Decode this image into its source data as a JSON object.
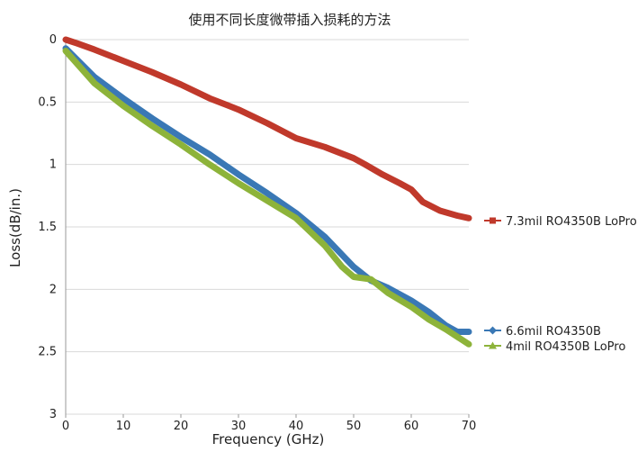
{
  "chart_data": {
    "type": "line",
    "title": "使用不同长度微带插入损耗的方法",
    "xlabel": "Frequency (GHz)",
    "ylabel": "Loss(dB/in.)",
    "xlim": [
      0,
      70
    ],
    "ylim": [
      0,
      3
    ],
    "y_inverted": true,
    "grid": "horizontal",
    "legend": "right, at line ends",
    "x_ticks": [
      "0",
      "10",
      "20",
      "30",
      "40",
      "50",
      "60",
      "70"
    ],
    "y_ticks": [
      "0",
      "0.5",
      "1",
      "1.5",
      "2",
      "2.5",
      "3"
    ],
    "series": [
      {
        "name": "7.3mil RO4350B LoPro",
        "color": "#c0392b",
        "marker": "square",
        "x": [
          0,
          2,
          5,
          10,
          15,
          20,
          25,
          30,
          35,
          40,
          45,
          50,
          52,
          55,
          58,
          60,
          62,
          65,
          68,
          70
        ],
        "y": [
          0,
          0.03,
          0.08,
          0.17,
          0.26,
          0.36,
          0.47,
          0.56,
          0.67,
          0.79,
          0.86,
          0.95,
          1.0,
          1.08,
          1.15,
          1.2,
          1.3,
          1.37,
          1.41,
          1.43
        ]
      },
      {
        "name": "6.6mil RO4350B",
        "color": "#3a78b5",
        "marker": "diamond",
        "x": [
          0,
          5,
          10,
          15,
          20,
          25,
          30,
          35,
          40,
          45,
          50,
          53,
          56,
          60,
          63,
          66,
          68,
          70
        ],
        "y": [
          0.07,
          0.3,
          0.47,
          0.63,
          0.78,
          0.92,
          1.08,
          1.23,
          1.39,
          1.58,
          1.82,
          1.93,
          1.99,
          2.09,
          2.18,
          2.29,
          2.34,
          2.34
        ]
      },
      {
        "name": "4mil RO4350B LoPro",
        "color": "#8db33a",
        "marker": "triangle",
        "x": [
          0,
          5,
          10,
          15,
          20,
          25,
          30,
          35,
          40,
          45,
          48,
          50,
          53,
          56,
          60,
          63,
          66,
          70
        ],
        "y": [
          0.09,
          0.35,
          0.53,
          0.69,
          0.84,
          1.0,
          1.15,
          1.29,
          1.43,
          1.65,
          1.82,
          1.9,
          1.92,
          2.03,
          2.14,
          2.24,
          2.32,
          2.44
        ]
      }
    ]
  }
}
